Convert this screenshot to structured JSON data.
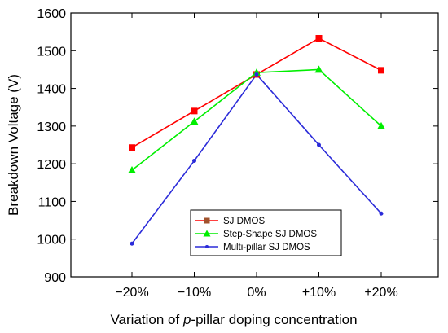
{
  "chart_data": {
    "type": "line",
    "title": "",
    "xlabel_parts": [
      {
        "text": "Variation of ",
        "italic": false
      },
      {
        "text": "p",
        "italic": true
      },
      {
        "text": "-pillar doping concentration",
        "italic": false
      }
    ],
    "ylabel": "Breakdown Voltage (V)",
    "categories": [
      "−20%",
      "−10%",
      "0%",
      "+10%",
      "+20%"
    ],
    "ylim": [
      900,
      1600
    ],
    "yticks": [
      900,
      1000,
      1100,
      1200,
      1300,
      1400,
      1500,
      1600
    ],
    "grid": false,
    "legend_position": "bottom-center",
    "series": [
      {
        "name": "SJ DMOS",
        "marker": "square",
        "color": "#ff0000",
        "legend_marker_color": "#a0522d",
        "values": [
          1243,
          1340,
          1437,
          1533,
          1448
        ]
      },
      {
        "name": "Step-Shape SJ DMOS",
        "marker": "triangle",
        "color": "#00ee00",
        "legend_marker_color": "#00ee00",
        "values": [
          1183,
          1312,
          1442,
          1450,
          1300
        ]
      },
      {
        "name": "Multi-pillar SJ DMOS",
        "marker": "circle",
        "color": "#2b2bd9",
        "legend_marker_color": "#2b2bd9",
        "values": [
          988,
          1208,
          1437,
          1250,
          1068
        ]
      }
    ]
  }
}
